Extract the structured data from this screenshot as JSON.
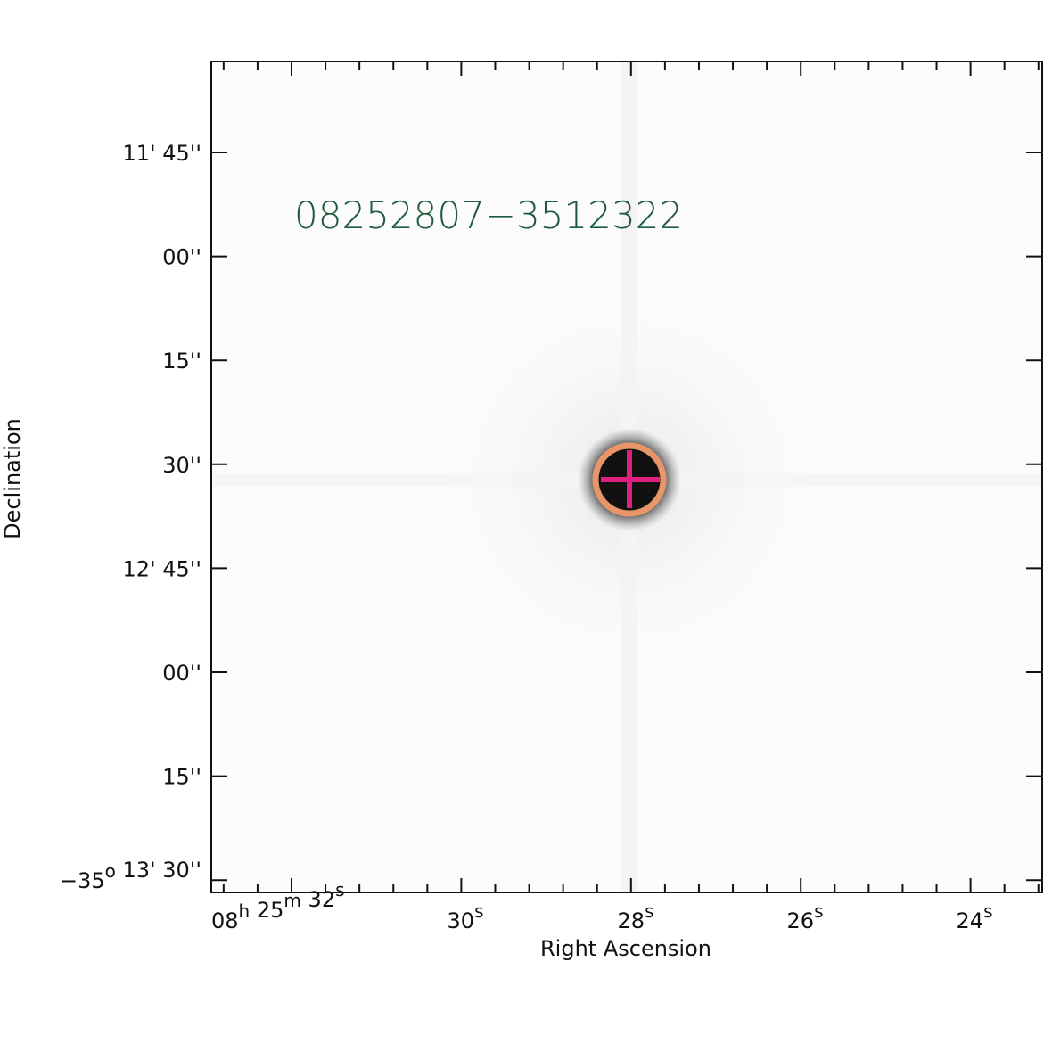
{
  "image_label": "08252807−3512322",
  "x_axis": {
    "title": "Right Ascension",
    "ticks": [
      [
        [
          "08",
          "h"
        ],
        [
          "25",
          "m"
        ],
        [
          "32",
          "s"
        ]
      ],
      [
        [
          "30",
          "s"
        ]
      ],
      [
        [
          "28",
          "s"
        ]
      ],
      [
        [
          "26",
          "s"
        ]
      ],
      [
        [
          "24",
          "s"
        ]
      ]
    ]
  },
  "y_axis": {
    "title": "Declination",
    "ticks": [
      [
        [
          "11' 45''",
          ""
        ]
      ],
      [
        [
          "00''",
          ""
        ]
      ],
      [
        [
          "15''",
          ""
        ]
      ],
      [
        [
          "30''",
          ""
        ]
      ],
      [
        [
          "12' 45''",
          ""
        ]
      ],
      [
        [
          "00''",
          ""
        ]
      ],
      [
        [
          "15''",
          ""
        ]
      ],
      [
        [
          "−35",
          "o"
        ],
        [
          " 13' 30''",
          ""
        ]
      ]
    ]
  }
}
